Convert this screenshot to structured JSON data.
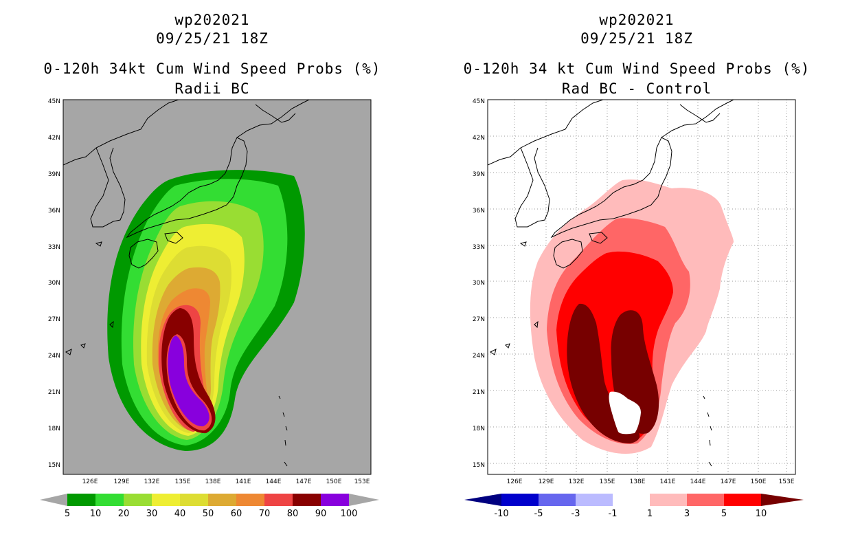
{
  "left": {
    "title_line1": "wp202021",
    "title_line2": "09/25/21 18Z",
    "title_line3": "0-120h 34kt Cum Wind Speed Probs (%)",
    "title_line4": "Radii BC",
    "colorbar_labels": [
      "5",
      "10",
      "20",
      "30",
      "40",
      "50",
      "60",
      "70",
      "80",
      "90",
      "100"
    ],
    "colorbar_colors": [
      "#009900",
      "#33dd33",
      "#99dd33",
      "#eeee33",
      "#dddd33",
      "#ddaa33",
      "#ee8833",
      "#ee4444",
      "#880000",
      "#8800dd"
    ],
    "background_color": "#a6a6a6"
  },
  "right": {
    "title_line1": "wp202021",
    "title_line2": "09/25/21 18Z",
    "title_line3": "0-120h 34 kt Cum Wind Speed Probs (%)",
    "title_line4": "Rad BC - Control",
    "colorbar_labels": [
      "-10",
      "-5",
      "-3",
      "-1",
      "1",
      "3",
      "5",
      "10"
    ],
    "colorbar_colors": [
      "#0000cc",
      "#6666ee",
      "#bbbbff",
      "#ffffff",
      "#ffbbbb",
      "#ff6666",
      "#ff0000",
      "#770000"
    ]
  },
  "lat_labels": [
    "45N",
    "42N",
    "39N",
    "36N",
    "33N",
    "30N",
    "27N",
    "24N",
    "21N",
    "18N",
    "15N"
  ],
  "lon_labels": [
    "126E",
    "129E",
    "132E",
    "135E",
    "138E",
    "141E",
    "144E",
    "147E",
    "150E",
    "153E"
  ]
}
